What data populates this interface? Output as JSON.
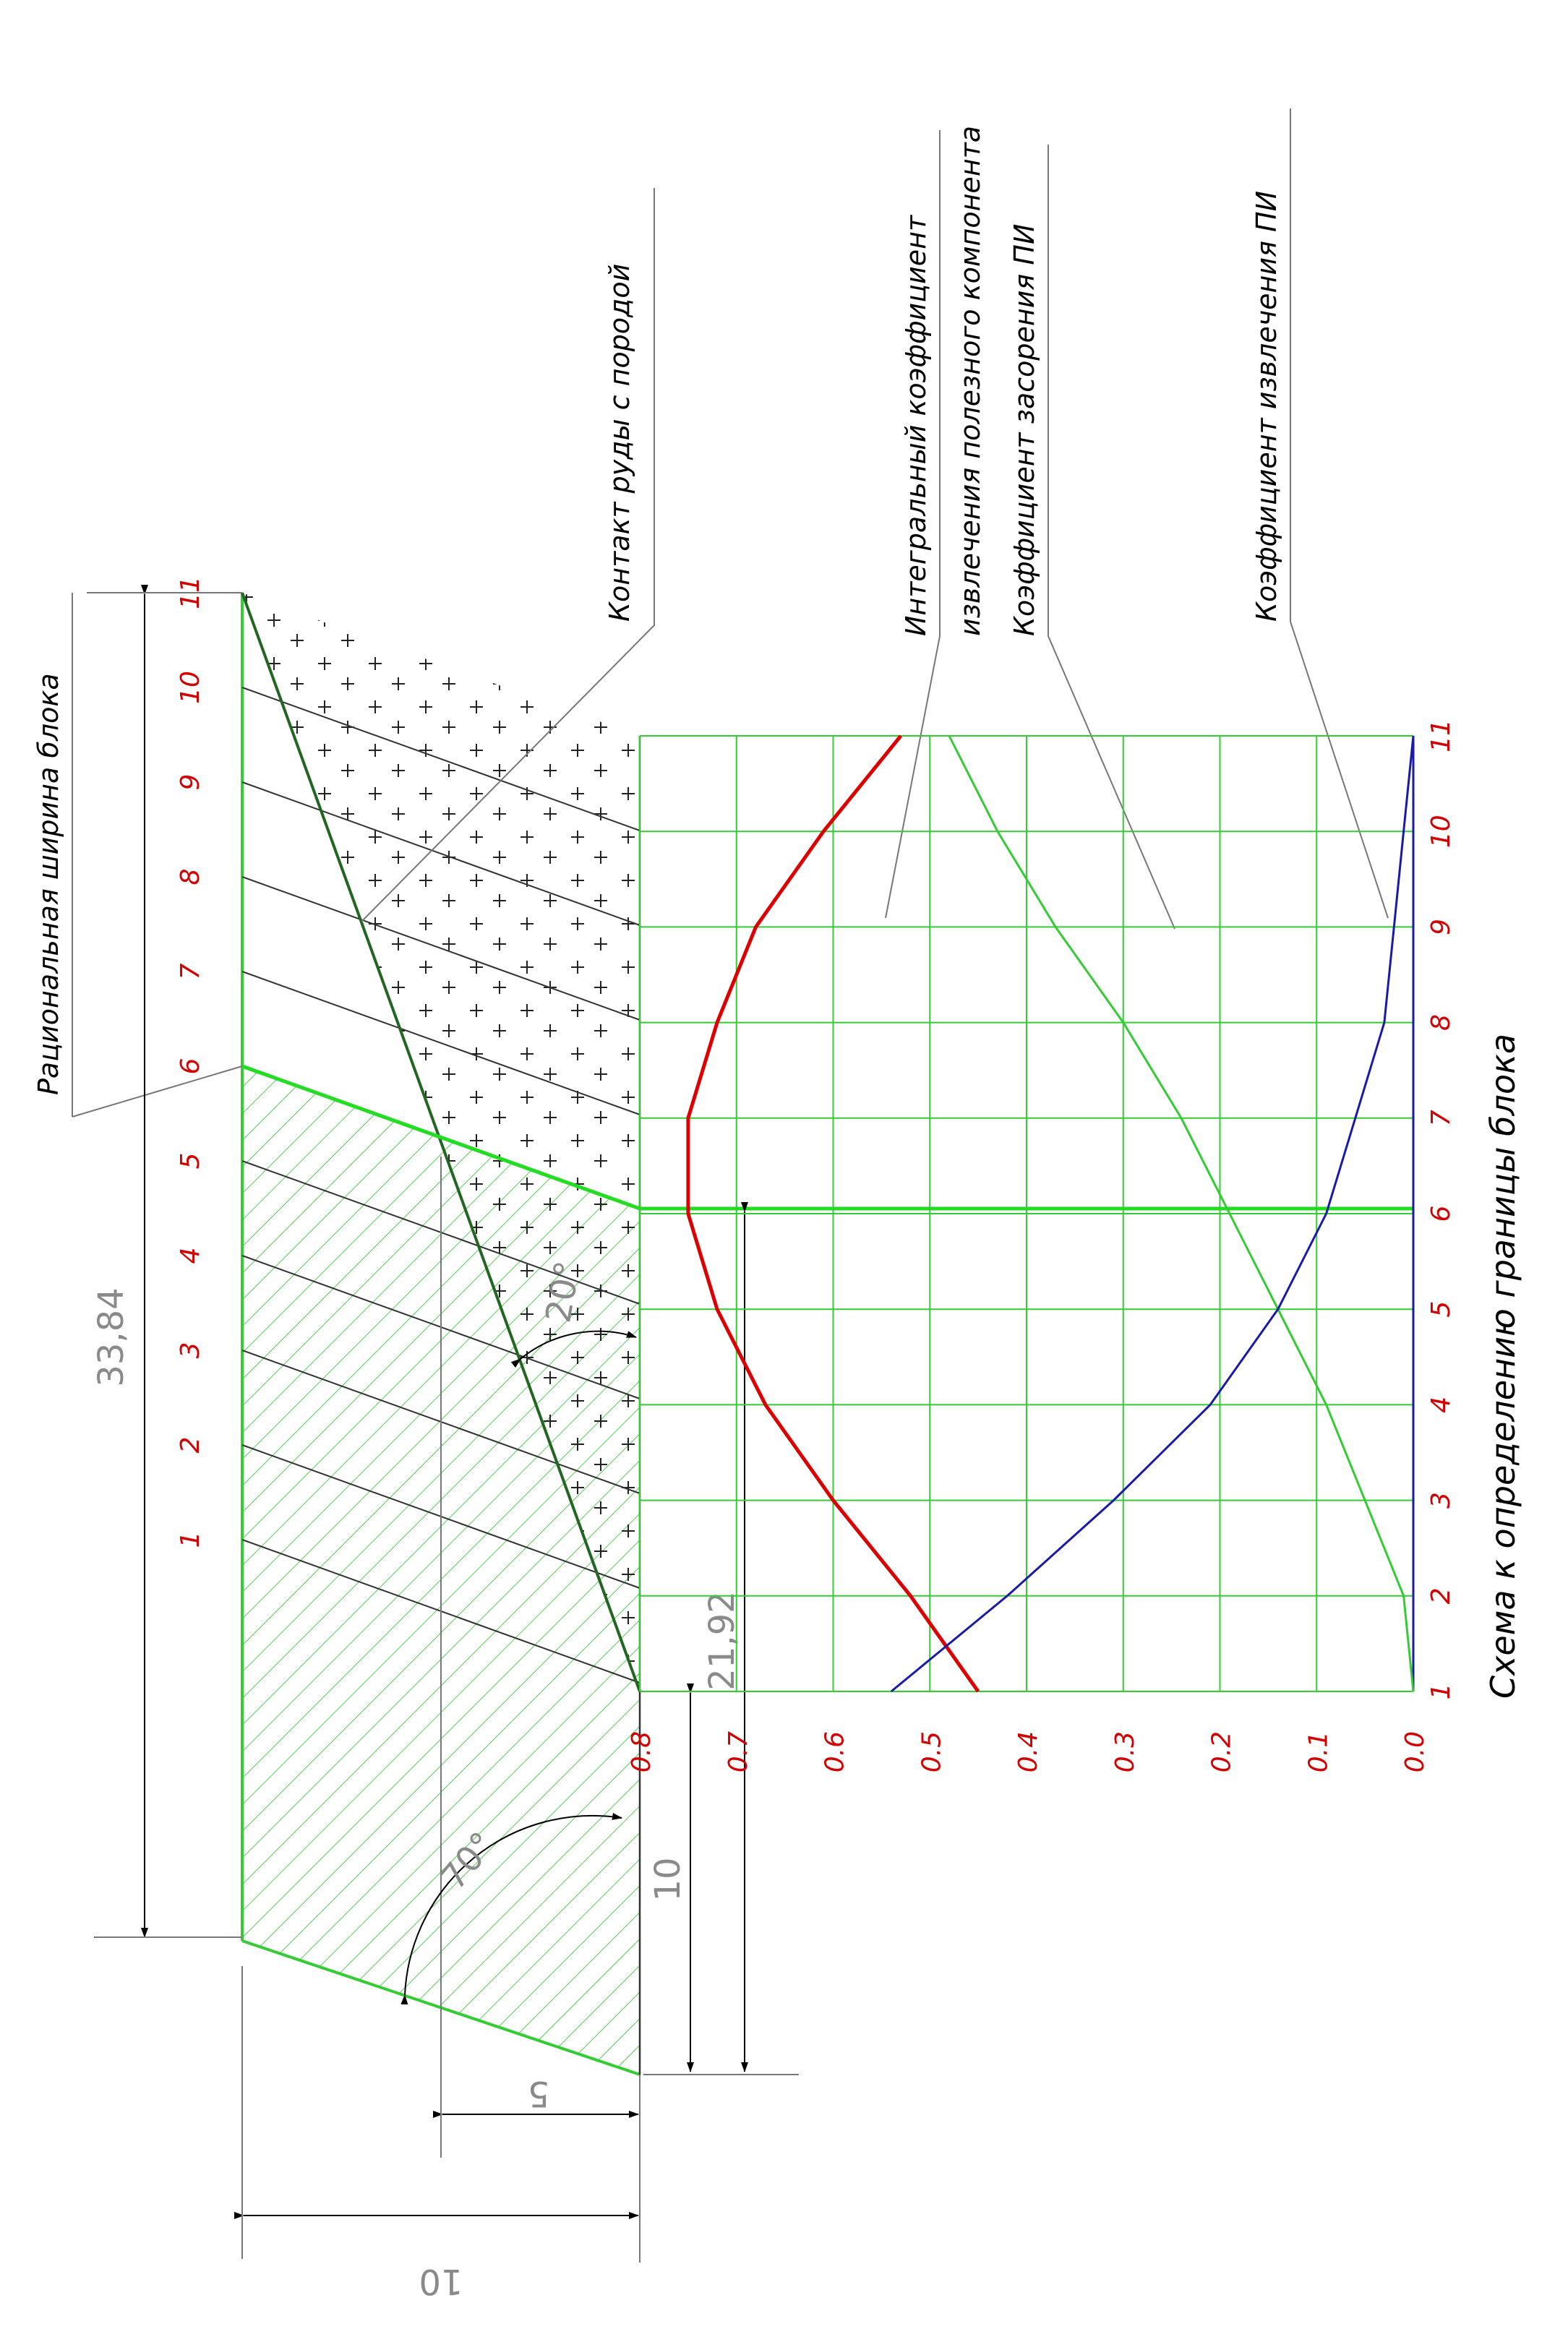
{
  "labels": {
    "caption": "Схема к определению границы блока",
    "rational_width": "Рациональная ширина блока",
    "contact": "Контакт руды с породой",
    "integral_1": "Интегральный коэффициент",
    "integral_2": "извлечения полезного компонента",
    "dilution": "Коэффициент засорения ПИ",
    "recovery": "Коэффициент извлечения ПИ"
  },
  "dimensions": {
    "d1": "33,84",
    "d2": "21,92",
    "d3": "10",
    "d4": "5",
    "d5": "10",
    "angle1": "70°",
    "angle2": "20°"
  },
  "colors": {
    "grid": "#33cc33",
    "integral": "#dd0000",
    "dilution": "#33cc33",
    "recovery": "#1a1aa8",
    "ticks": "#d40000"
  },
  "block_numbers": [
    "1",
    "2",
    "3",
    "4",
    "5",
    "6",
    "7",
    "8",
    "9",
    "10",
    "11"
  ],
  "chart_data": {
    "type": "line",
    "x": [
      1,
      2,
      3,
      4,
      5,
      6,
      7,
      8,
      9,
      10,
      11
    ],
    "x_tick_labels": [
      "1",
      "2",
      "3",
      "4",
      "5",
      "6",
      "7",
      "8",
      "9",
      "10",
      "11"
    ],
    "y_tick_labels": [
      "0.0",
      "0.1",
      "0.2",
      "0.3",
      "0.4",
      "0.5",
      "0.6",
      "0.7",
      "0.8"
    ],
    "ylim": [
      0,
      0.8
    ],
    "marker_x": 6,
    "series": [
      {
        "key": "integral",
        "values": [
          0.45,
          0.52,
          0.6,
          0.67,
          0.72,
          0.75,
          0.75,
          0.72,
          0.68,
          0.61,
          0.53
        ]
      },
      {
        "key": "dilution",
        "values": [
          0.0,
          0.01,
          0.05,
          0.09,
          0.14,
          0.19,
          0.24,
          0.3,
          0.37,
          0.43,
          0.48
        ]
      },
      {
        "key": "recovery",
        "values": [
          0.54,
          0.42,
          0.31,
          0.21,
          0.14,
          0.09,
          0.06,
          0.03,
          0.02,
          0.01,
          0.0
        ]
      }
    ]
  }
}
